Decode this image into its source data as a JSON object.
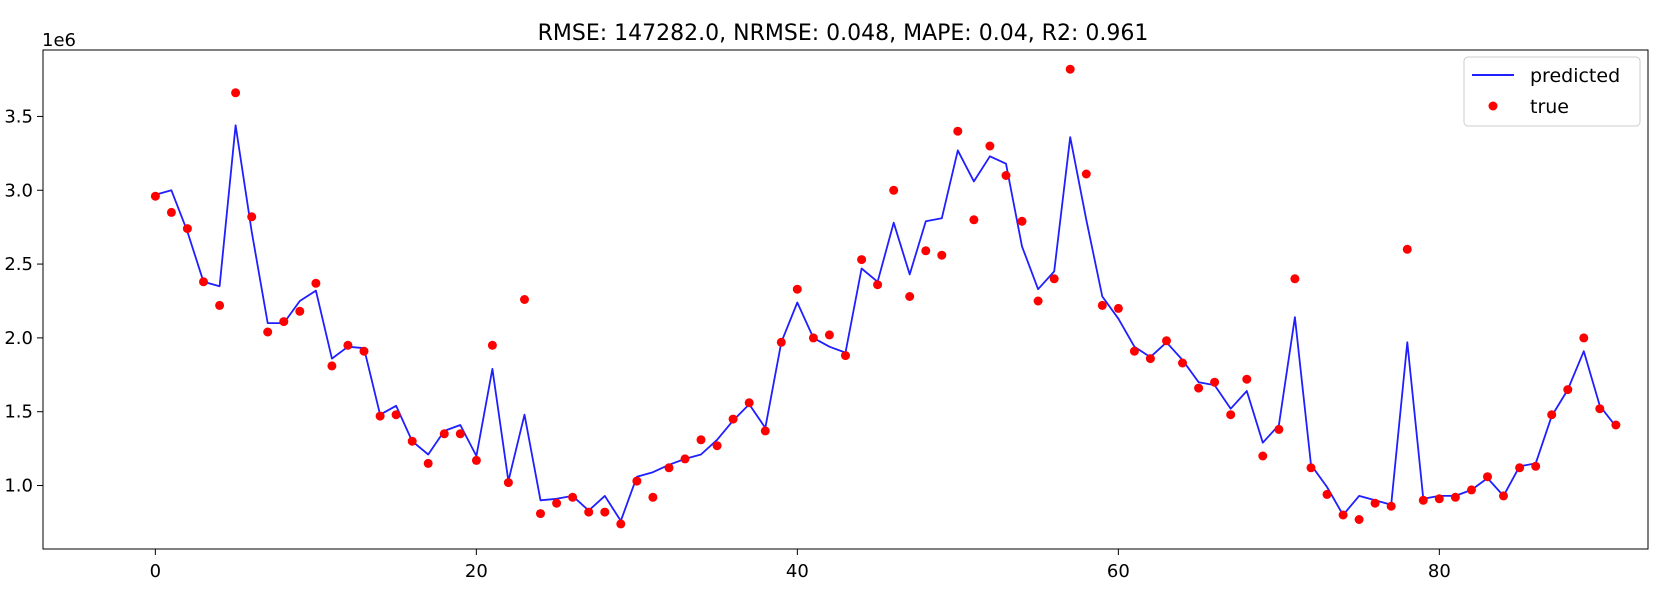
{
  "chart_data": {
    "type": "line",
    "title": "RMSE: 147282.0, NRMSE: 0.048, MAPE: 0.04, R2: 0.961",
    "xlabel": "",
    "ylabel": "",
    "y_offset_label": "1e6",
    "xlim": [
      -7,
      93
    ],
    "ylim": [
      0.57,
      3.95
    ],
    "xticks": [
      0,
      20,
      40,
      60,
      80
    ],
    "yticks": [
      1.0,
      1.5,
      2.0,
      2.5,
      3.0,
      3.5
    ],
    "grid": false,
    "legend_position": "top-right",
    "colors": {
      "predicted": "#1f1fff",
      "true": "#ff0000"
    },
    "series": [
      {
        "name": "predicted",
        "kind": "line",
        "x": [
          0,
          1,
          2,
          3,
          4,
          5,
          6,
          7,
          8,
          9,
          10,
          11,
          12,
          13,
          14,
          15,
          16,
          17,
          18,
          19,
          20,
          21,
          22,
          23,
          24,
          25,
          26,
          27,
          28,
          29,
          30,
          31,
          32,
          33,
          34,
          35,
          36,
          37,
          38,
          39,
          40,
          41,
          42,
          43,
          44,
          45,
          46,
          47,
          48,
          49,
          50,
          51,
          52,
          53,
          54,
          55,
          56,
          57,
          58,
          59,
          60,
          61,
          62,
          63,
          64,
          65,
          66,
          67,
          68,
          69,
          70,
          71,
          72,
          73,
          74,
          75,
          76,
          77,
          78,
          79,
          80,
          81,
          82,
          83,
          84,
          85,
          86,
          87,
          88,
          89,
          90,
          91
        ],
        "y": [
          2.97,
          3.0,
          2.72,
          2.38,
          2.35,
          3.44,
          2.72,
          2.1,
          2.1,
          2.25,
          2.32,
          1.86,
          1.94,
          1.93,
          1.48,
          1.54,
          1.3,
          1.21,
          1.37,
          1.41,
          1.2,
          1.79,
          1.03,
          1.48,
          0.9,
          0.91,
          0.93,
          0.83,
          0.93,
          0.76,
          1.06,
          1.09,
          1.14,
          1.18,
          1.21,
          1.31,
          1.44,
          1.55,
          1.39,
          1.97,
          2.24,
          2.0,
          1.94,
          1.9,
          2.47,
          2.38,
          2.78,
          2.43,
          2.79,
          2.81,
          3.27,
          3.06,
          3.23,
          3.18,
          2.62,
          2.33,
          2.45,
          3.36,
          2.8,
          2.28,
          2.13,
          1.94,
          1.87,
          1.97,
          1.85,
          1.7,
          1.68,
          1.52,
          1.64,
          1.29,
          1.41,
          2.14,
          1.14,
          0.99,
          0.8,
          0.93,
          0.9,
          0.87,
          1.97,
          0.91,
          0.93,
          0.93,
          0.97,
          1.05,
          0.93,
          1.13,
          1.15,
          1.47,
          1.65,
          1.91,
          1.54,
          1.4
        ]
      },
      {
        "name": "true",
        "kind": "scatter",
        "x": [
          0,
          1,
          2,
          3,
          4,
          5,
          6,
          7,
          8,
          9,
          10,
          11,
          12,
          13,
          14,
          15,
          16,
          17,
          18,
          19,
          20,
          21,
          22,
          23,
          24,
          25,
          26,
          27,
          28,
          29,
          30,
          31,
          32,
          33,
          34,
          35,
          36,
          37,
          38,
          39,
          40,
          41,
          42,
          43,
          44,
          45,
          46,
          47,
          48,
          49,
          50,
          51,
          52,
          53,
          54,
          55,
          56,
          57,
          58,
          59,
          60,
          61,
          62,
          63,
          64,
          65,
          66,
          67,
          68,
          69,
          70,
          71,
          72,
          73,
          74,
          75,
          76,
          77,
          78,
          79,
          80,
          81,
          82,
          83,
          84,
          85,
          86,
          87,
          88,
          89,
          90,
          91
        ],
        "y": [
          2.96,
          2.85,
          2.74,
          2.38,
          2.22,
          3.66,
          2.82,
          2.04,
          2.11,
          2.18,
          2.37,
          1.81,
          1.95,
          1.91,
          1.47,
          1.48,
          1.3,
          1.15,
          1.35,
          1.35,
          1.17,
          1.95,
          1.02,
          2.26,
          0.81,
          0.88,
          0.92,
          0.82,
          0.82,
          0.74,
          1.03,
          0.92,
          1.12,
          1.18,
          1.31,
          1.27,
          1.45,
          1.56,
          1.37,
          1.97,
          2.33,
          2.0,
          2.02,
          1.88,
          2.53,
          2.36,
          3.0,
          2.28,
          2.59,
          2.56,
          3.4,
          2.8,
          3.3,
          3.1,
          2.79,
          2.25,
          2.4,
          3.82,
          3.11,
          2.22,
          2.2,
          1.91,
          1.86,
          1.98,
          1.83,
          1.66,
          1.7,
          1.48,
          1.72,
          1.2,
          1.38,
          2.4,
          1.12,
          0.94,
          0.8,
          0.77,
          0.88,
          0.86,
          2.6,
          0.9,
          0.91,
          0.92,
          0.97,
          1.06,
          0.93,
          1.12,
          1.13,
          1.48,
          1.65,
          2.0,
          1.52,
          1.41
        ]
      }
    ]
  }
}
